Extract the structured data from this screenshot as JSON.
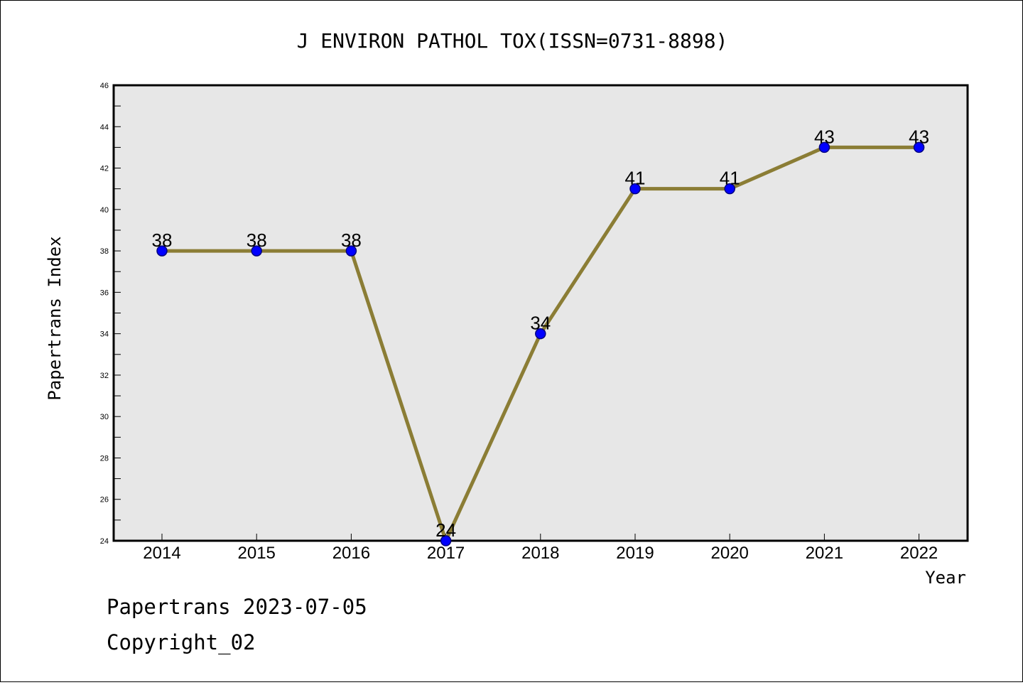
{
  "chart_data": {
    "type": "line",
    "title": "J ENVIRON PATHOL TOX(ISSN=0731-8898)",
    "xlabel": "Year",
    "ylabel": "Papertrans Index",
    "categories": [
      "2014",
      "2015",
      "2016",
      "2017",
      "2018",
      "2019",
      "2020",
      "2021",
      "2022"
    ],
    "series": [
      {
        "values": [
          38,
          38,
          38,
          24,
          34,
          41,
          41,
          43,
          43
        ],
        "data_labels": [
          "38",
          "38",
          "38",
          "24",
          "34",
          "41",
          "41",
          "43",
          "43"
        ]
      }
    ],
    "ylim": [
      24,
      46
    ],
    "yticks": [
      "24",
      "26",
      "28",
      "30",
      "32",
      "34",
      "36",
      "38",
      "40",
      "42",
      "44",
      "46"
    ],
    "grid": false,
    "legend": "none",
    "colors": {
      "line": "#8b7d35",
      "marker_fill": "#0000ff",
      "marker_edge": "#000080",
      "plot_background": "#e7e7e7"
    }
  },
  "footer": {
    "source": "Papertrans 2023-07-05",
    "copyright": "Copyright_02"
  }
}
